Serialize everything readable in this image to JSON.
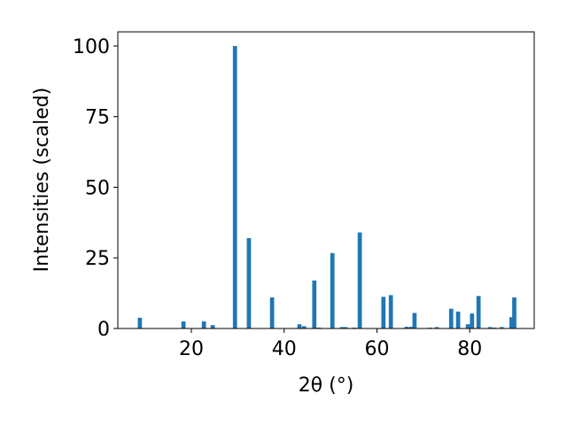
{
  "chart_data": {
    "type": "bar",
    "x_label": "2θ (°)",
    "y_label": "Intensities (scaled)",
    "x": [
      8.9,
      18.3,
      22.7,
      24.6,
      29.4,
      32.4,
      37.4,
      43.3,
      44.3,
      46.5,
      47.5,
      50.4,
      52.5,
      53.2,
      55.1,
      56.3,
      61.4,
      63.0,
      66.4,
      67.4,
      68.1,
      71.4,
      72.9,
      76.0,
      77.5,
      79.6,
      80.5,
      81.9,
      84.4,
      85.3,
      86.9,
      89.0,
      89.6
    ],
    "values": [
      3.8,
      2.5,
      2.5,
      1.2,
      100,
      32,
      11,
      1.5,
      0.8,
      17,
      0.3,
      26.7,
      0.5,
      0.5,
      0.3,
      34,
      11.2,
      11.8,
      0.6,
      0.6,
      5.5,
      0.3,
      0.5,
      7,
      6,
      1.5,
      5.3,
      11.5,
      0.5,
      0.3,
      0.5,
      4,
      11
    ],
    "color": "#1f77b4",
    "xlim": [
      4.15,
      93.9
    ],
    "xticks": [
      20,
      40,
      60,
      80
    ],
    "ylim": [
      0,
      105
    ],
    "yticks": [
      0,
      25,
      50,
      75,
      100
    ]
  }
}
